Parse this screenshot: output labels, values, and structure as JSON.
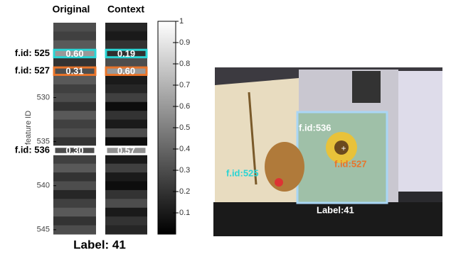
{
  "chart_data": {
    "type": "heatmap",
    "column_titles": [
      "Original",
      "Context"
    ],
    "y_label": "feature ID",
    "y": [
      522,
      523,
      524,
      525,
      526,
      527,
      528,
      529,
      530,
      531,
      532,
      533,
      534,
      535,
      536,
      537,
      538,
      539,
      540,
      541,
      542,
      543,
      544,
      545
    ],
    "series": [
      {
        "name": "Original",
        "values": [
          0.3,
          0.25,
          0.35,
          0.6,
          0.2,
          0.31,
          0.35,
          0.25,
          0.3,
          0.2,
          0.35,
          0.25,
          0.3,
          0.2,
          0.3,
          0.25,
          0.35,
          0.2,
          0.3,
          0.15,
          0.25,
          0.35,
          0.2,
          0.3
        ],
        "value_labels": [
          null,
          null,
          null,
          "0.60",
          null,
          "0.31",
          null,
          null,
          null,
          null,
          null,
          null,
          null,
          null,
          "0.30",
          null,
          null,
          null,
          null,
          null,
          null,
          null,
          null,
          null
        ]
      },
      {
        "name": "Context",
        "values": [
          0.15,
          0.1,
          0.2,
          0.19,
          0.3,
          0.6,
          0.1,
          0.15,
          0.25,
          0.05,
          0.2,
          0.1,
          0.3,
          0.05,
          0.57,
          0.1,
          0.25,
          0.1,
          0.05,
          0.2,
          0.3,
          0.1,
          0.2,
          0.15
        ],
        "value_labels": [
          null,
          null,
          null,
          "0.19",
          null,
          "0.60",
          null,
          null,
          null,
          null,
          null,
          null,
          null,
          null,
          "0.57",
          null,
          null,
          null,
          null,
          null,
          null,
          null,
          null,
          null
        ]
      }
    ],
    "ylim": [
      521.5,
      545.5
    ],
    "yticks": [
      530,
      535,
      540,
      545
    ],
    "clim": [
      0,
      1
    ],
    "cticks": [
      0.1,
      0.2,
      0.3,
      0.4,
      0.5,
      0.6,
      0.7,
      0.8,
      0.9,
      1
    ],
    "highlights": [
      {
        "id": 525,
        "label": "f.id: 525",
        "color": "#2ad4d4"
      },
      {
        "id": 527,
        "label": "f.id: 527",
        "color": "#e8742a"
      },
      {
        "id": 536,
        "label": "f.id: 536",
        "color": "#ffffff"
      }
    ],
    "footer": "Label: 41"
  },
  "photo": {
    "annotations": [
      {
        "text": "f.id:536",
        "color": "#ffffff"
      },
      {
        "text": "f.id:527",
        "color": "#e8742a"
      },
      {
        "text": "f.id:525",
        "color": "#2ad4d4"
      },
      {
        "text": "Label:41",
        "color": "#ffffff"
      }
    ]
  }
}
